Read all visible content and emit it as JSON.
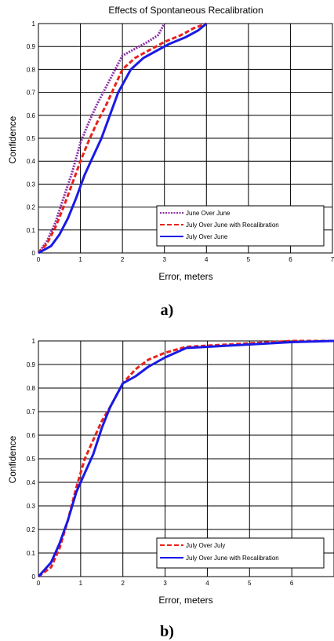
{
  "captions": [
    "a)",
    "b)"
  ],
  "chart_data": [
    {
      "type": "line",
      "title": "Effects of Spontaneous Recalibration",
      "xlabel": "Error, meters",
      "ylabel": "Confidence",
      "xlim": [
        0,
        7
      ],
      "ylim": [
        0,
        1
      ],
      "xticks": [
        "0",
        "1",
        "2",
        "3",
        "4",
        "5",
        "6",
        "7"
      ],
      "yticks": [
        "0",
        "0.1",
        "0.2",
        "0.3",
        "0.4",
        "0.5",
        "0.6",
        "0.7",
        "0.8",
        "0.9",
        "1"
      ],
      "grid": true,
      "legend_position": "bottom-right",
      "series": [
        {
          "name": "June Over June",
          "color": "#8B2FA8",
          "style": "dotted",
          "x": [
            0,
            0.2,
            0.4,
            0.6,
            0.8,
            1.0,
            1.2,
            1.4,
            1.6,
            1.8,
            2.0,
            2.3,
            2.6,
            2.85,
            3.0
          ],
          "y": [
            0,
            0.05,
            0.13,
            0.24,
            0.35,
            0.48,
            0.57,
            0.65,
            0.72,
            0.79,
            0.86,
            0.89,
            0.92,
            0.95,
            1.0
          ]
        },
        {
          "name": "July Over June with Recalibration",
          "color": "#E8221B",
          "style": "dashed",
          "x": [
            0,
            0.2,
            0.4,
            0.6,
            0.8,
            1.0,
            1.2,
            1.4,
            1.6,
            1.8,
            2.0,
            2.3,
            2.6,
            3.0,
            3.4,
            3.7,
            4.0
          ],
          "y": [
            0,
            0.04,
            0.11,
            0.2,
            0.3,
            0.4,
            0.49,
            0.57,
            0.64,
            0.72,
            0.8,
            0.85,
            0.88,
            0.92,
            0.95,
            0.98,
            1.0
          ]
        },
        {
          "name": "July Over June",
          "color": "#1A1AE6",
          "style": "solid",
          "x": [
            0,
            0.3,
            0.5,
            0.7,
            0.9,
            1.1,
            1.3,
            1.5,
            1.7,
            1.9,
            2.2,
            2.5,
            2.8,
            3.1,
            3.5,
            3.8,
            4.0
          ],
          "y": [
            0,
            0.03,
            0.08,
            0.15,
            0.24,
            0.34,
            0.42,
            0.5,
            0.6,
            0.7,
            0.8,
            0.85,
            0.88,
            0.91,
            0.94,
            0.97,
            1.0
          ]
        }
      ]
    },
    {
      "type": "line",
      "title": "",
      "xlabel": "Error, meters",
      "ylabel": "Confidence",
      "xlim": [
        0,
        7
      ],
      "ylim": [
        0,
        1
      ],
      "xticks": [
        "0",
        "1",
        "2",
        "3",
        "4",
        "5",
        "6"
      ],
      "yticks": [
        "0",
        "0.1",
        "0.2",
        "0.3",
        "0.4",
        "0.5",
        "0.6",
        "0.7",
        "0.8",
        "0.9",
        "1"
      ],
      "grid": true,
      "legend_position": "bottom-right",
      "series": [
        {
          "name": "July Over July",
          "color": "#E8221B",
          "style": "dashed",
          "x": [
            0,
            0.3,
            0.5,
            0.7,
            0.9,
            1.1,
            1.3,
            1.5,
            1.7,
            2.0,
            2.3,
            2.6,
            3.0,
            3.5,
            4.0,
            5.0,
            6.0,
            7.0
          ],
          "y": [
            0,
            0.04,
            0.12,
            0.24,
            0.38,
            0.5,
            0.58,
            0.66,
            0.72,
            0.82,
            0.88,
            0.92,
            0.95,
            0.975,
            0.98,
            0.99,
            1.0,
            1.0
          ]
        },
        {
          "name": "July Over June with Recalibration",
          "color": "#1A1AE6",
          "style": "solid",
          "x": [
            0,
            0.3,
            0.5,
            0.7,
            0.9,
            1.1,
            1.3,
            1.5,
            1.7,
            2.0,
            2.3,
            2.6,
            3.0,
            3.5,
            4.0,
            5.0,
            6.0,
            7.0
          ],
          "y": [
            0,
            0.06,
            0.14,
            0.24,
            0.36,
            0.44,
            0.52,
            0.63,
            0.72,
            0.82,
            0.85,
            0.89,
            0.93,
            0.97,
            0.975,
            0.985,
            0.995,
            1.0
          ]
        }
      ]
    }
  ]
}
